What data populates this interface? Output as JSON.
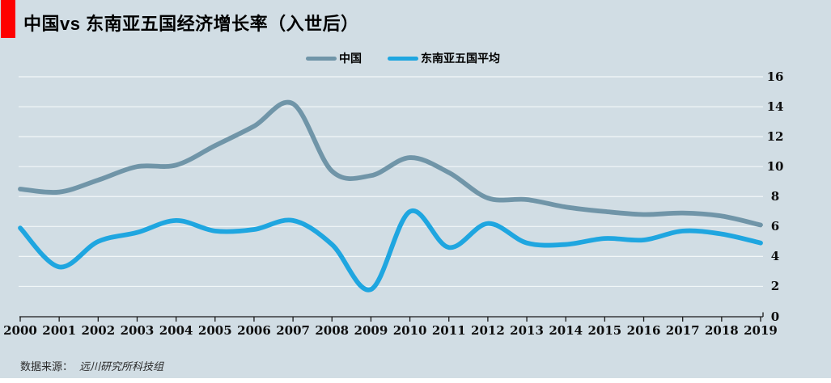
{
  "title": "中国vs 东南亚五国经济增长率（入世后）",
  "legend": [
    {
      "label": "中国",
      "color": "#7095a8"
    },
    {
      "label": "东南亚五国平均",
      "color": "#1fa6e0"
    }
  ],
  "source": {
    "prefix": "数据来源：",
    "name": "远川研究所科技组"
  },
  "colors": {
    "background": "#d1dde4",
    "accent_red": "#fe0000",
    "gridline": "#f4f9fa",
    "axis": "#1a1a1a",
    "china_line": "#7095a8",
    "sea_line": "#1fa6e0"
  },
  "chart_data": {
    "type": "line",
    "x": [
      2000,
      2001,
      2002,
      2003,
      2004,
      2005,
      2006,
      2007,
      2008,
      2009,
      2010,
      2011,
      2012,
      2013,
      2014,
      2015,
      2016,
      2017,
      2018,
      2019
    ],
    "series": [
      {
        "name": "中国",
        "color": "#7095a8",
        "values": [
          8.5,
          8.3,
          9.1,
          10.0,
          10.1,
          11.4,
          12.7,
          14.2,
          9.7,
          9.4,
          10.6,
          9.6,
          7.9,
          7.8,
          7.3,
          7.0,
          6.8,
          6.9,
          6.7,
          6.1
        ]
      },
      {
        "name": "东南亚五国平均",
        "color": "#1fa6e0",
        "values": [
          5.9,
          3.3,
          5.0,
          5.6,
          6.4,
          5.7,
          5.8,
          6.4,
          4.8,
          1.8,
          7.0,
          4.6,
          6.2,
          4.9,
          4.8,
          5.2,
          5.1,
          5.7,
          5.5,
          4.9
        ]
      }
    ],
    "ylim": [
      0,
      16
    ],
    "yticks": [
      0,
      2,
      4,
      6,
      8,
      10,
      12,
      14,
      16
    ],
    "grid": true,
    "smooth": true,
    "legend_position": "top-center",
    "title": "中国vs 东南亚五国经济增长率（入世后）",
    "xlabel": "",
    "ylabel": ""
  }
}
